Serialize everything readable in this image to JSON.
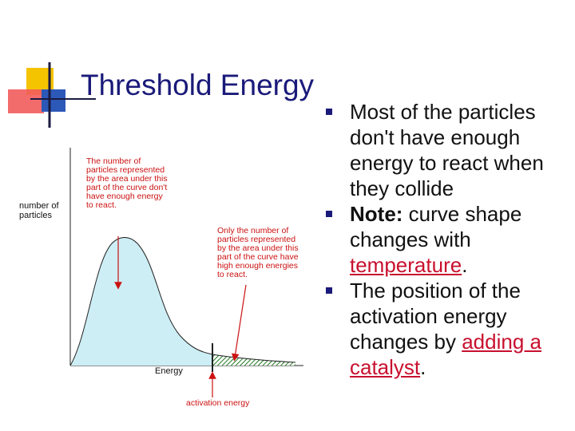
{
  "slide": {
    "title": "Threshold Energy"
  },
  "diagram": {
    "y_axis_label": [
      "number of",
      "particles"
    ],
    "x_axis_label": "Energy",
    "left_annotation": [
      "The number of",
      "particles represented",
      "by the area under this",
      "part of the curve don't",
      "have enough energy",
      "to react."
    ],
    "right_annotation": [
      "Only the number of",
      "particles represented",
      "by the area under this",
      "part of the curve have",
      "high enough energies",
      "to react."
    ],
    "activation_label": "activation energy",
    "colors": {
      "curve_fill": "#cdeef5",
      "tail_hatch": "#1f7a1f",
      "arrow": "#cc1111",
      "label_text": "#cc1111"
    }
  },
  "bullets": [
    {
      "text": "Most of the particles don't have enough energy to react when they collide"
    },
    {
      "bold_part": "Note:",
      "text": "  curve shape changes with ",
      "link": "temperature",
      "end": "."
    },
    {
      "text": "The position of the activation energy changes by ",
      "link": "adding a catalyst",
      "end": "."
    }
  ],
  "colors": {
    "title": "#1a1a7a",
    "bullet_marker": "#1a1a7a",
    "link": "#c8102e"
  }
}
